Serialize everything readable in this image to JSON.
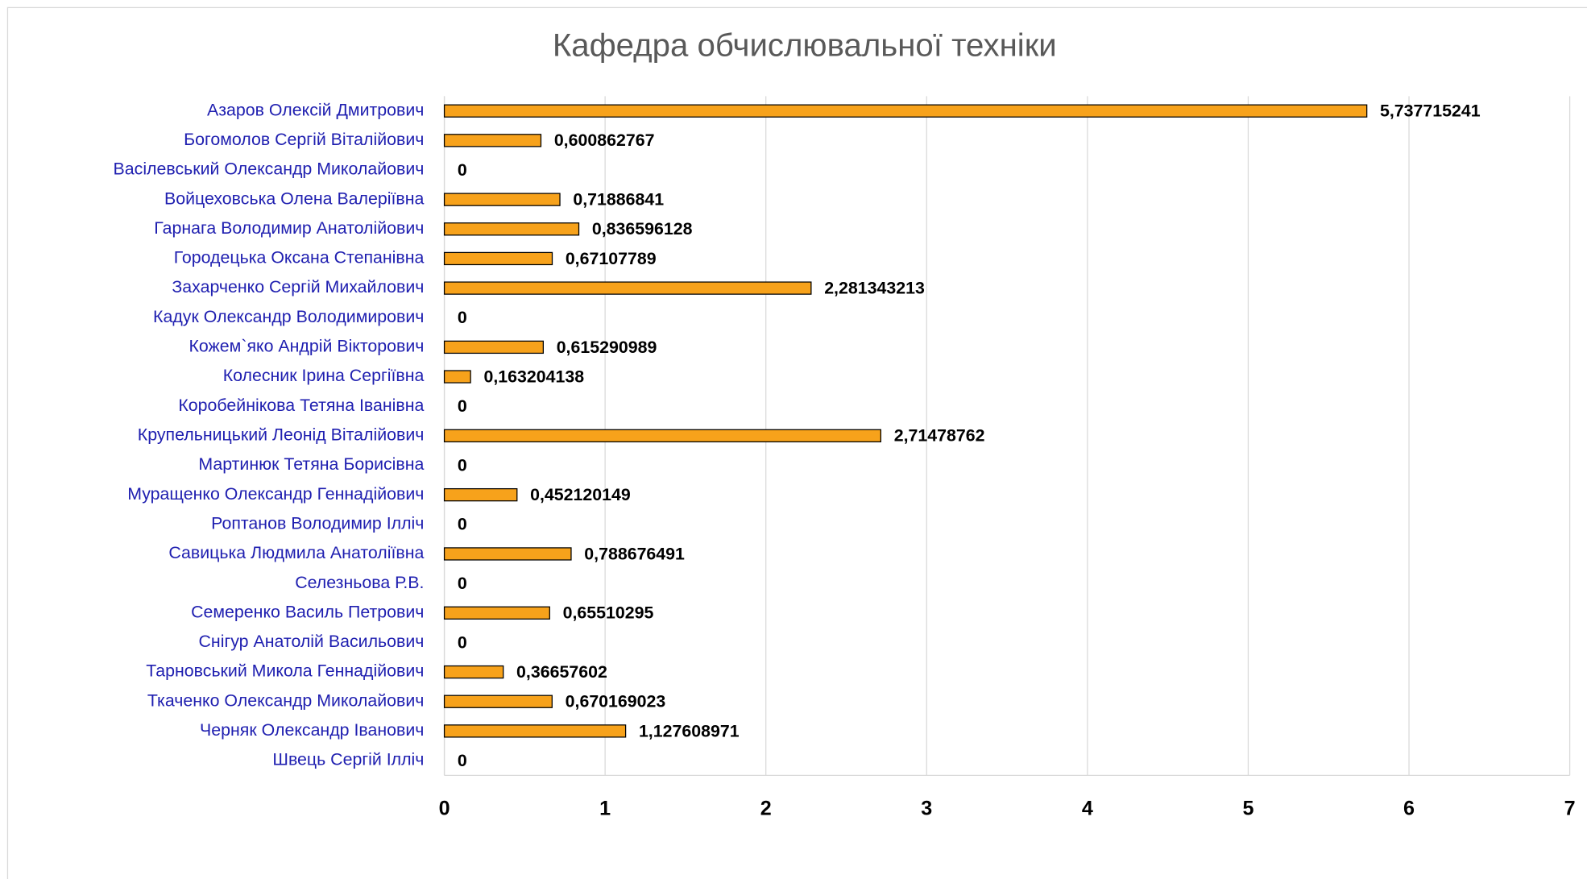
{
  "chart_data": {
    "type": "bar",
    "orientation": "horizontal",
    "title": "Кафедра обчислювальної техніки",
    "categories": [
      "Азаров Олексій Дмитрович",
      "Богомолов Сергій Віталійович",
      "Васілевський Олександр Миколайович",
      "Войцеховська Олена Валеріївна",
      "Гарнага Володимир Анатолійович",
      "Городецька Оксана Степанівна",
      "Захарченко Сергій Михайлович",
      "Кадук Олександр Володимирович",
      "Кожем`яко Андрій Вікторович",
      "Колесник Ірина Сергіївна",
      "Коробейнікова Тетяна Іванівна",
      "Крупельницький Леонід Віталійович",
      "Мартинюк Тетяна Борисівна",
      "Муращенко Олександр Геннадійович",
      "Роптанов Володимир Ілліч",
      "Савицька Людмила Анатоліївна",
      "Селезньова Р.В.",
      "Семеренко Василь Петрович",
      "Снігур Анатолій Васильович",
      "Тарновський Микола Геннадійович",
      "Ткаченко Олександр Миколайович",
      "Черняк Олександр Іванович",
      "Швець Сергій Ілліч"
    ],
    "values": [
      5.737715241,
      0.600862767,
      0,
      0.71886841,
      0.836596128,
      0.67107789,
      2.281343213,
      0,
      0.615290989,
      0.163204138,
      0,
      2.71478762,
      0,
      0.452120149,
      0,
      0.788676491,
      0,
      0.65510295,
      0,
      0.36657602,
      0.670169023,
      1.127608971,
      0
    ],
    "value_labels": [
      "5,737715241",
      "0,600862767",
      "0",
      "0,71886841",
      "0,836596128",
      "0,67107789",
      "2,281343213",
      "0",
      "0,615290989",
      "0,163204138",
      "0",
      "2,71478762",
      "0",
      "0,452120149",
      "0",
      "0,788676491",
      "0",
      "0,65510295",
      "0",
      "0,36657602",
      "0,670169023",
      "1,127608971",
      "0"
    ],
    "color": "#f7a21b",
    "xlim": [
      0,
      7
    ],
    "xticks": [
      0,
      1,
      2,
      3,
      4,
      5,
      6,
      7
    ],
    "grid": true
  }
}
